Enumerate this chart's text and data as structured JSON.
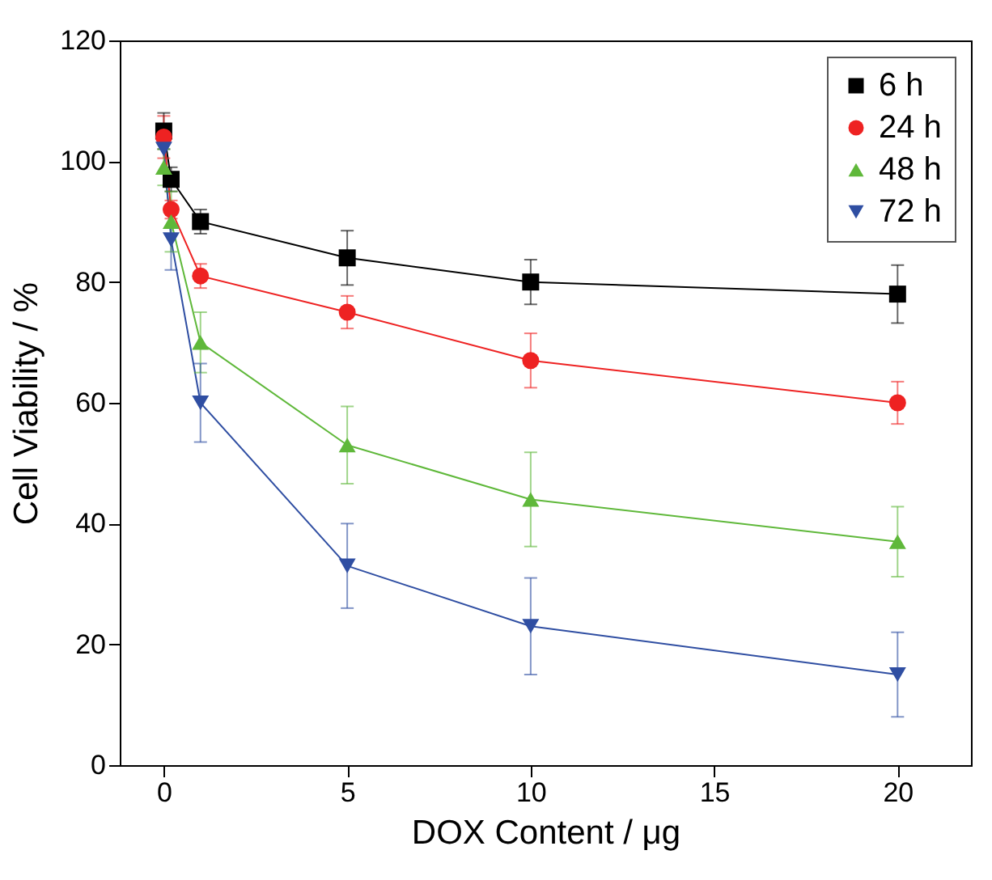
{
  "chart_data": {
    "type": "line",
    "xlabel": "DOX Content / μg",
    "ylabel": "Cell Viability / %",
    "x": [
      0,
      0.2,
      1,
      5,
      10,
      20
    ],
    "series": [
      {
        "name": "6 h",
        "color": "#000000",
        "marker": "square",
        "values": [
          105,
          97,
          90,
          84,
          80,
          78
        ],
        "errors": [
          3,
          2,
          2,
          4.5,
          3.7,
          4.8
        ]
      },
      {
        "name": "24 h",
        "color": "#ee2222",
        "marker": "circle",
        "values": [
          104,
          92,
          81,
          75,
          67,
          60
        ],
        "errors": [
          3.5,
          1.5,
          2,
          2.7,
          4.5,
          3.5
        ]
      },
      {
        "name": "48 h",
        "color": "#5fb83a",
        "marker": "triangle",
        "values": [
          99,
          90,
          70,
          53,
          44,
          37
        ],
        "errors": [
          3,
          5,
          5,
          6.4,
          7.8,
          5.8
        ]
      },
      {
        "name": "72 h",
        "color": "#2f4ea2",
        "marker": "triangle-down",
        "values": [
          102,
          87,
          60,
          33,
          23,
          15
        ],
        "errors": [
          null,
          5,
          6.5,
          7,
          8,
          7
        ]
      }
    ],
    "xlim": [
      -1.2,
      22
    ],
    "xticks": [
      0,
      5,
      10,
      15,
      20
    ],
    "ylim": [
      0,
      120
    ],
    "yticks": [
      0,
      20,
      40,
      60,
      80,
      100,
      120
    ],
    "grid": false,
    "legend": "top right",
    "line_style": "solid"
  }
}
